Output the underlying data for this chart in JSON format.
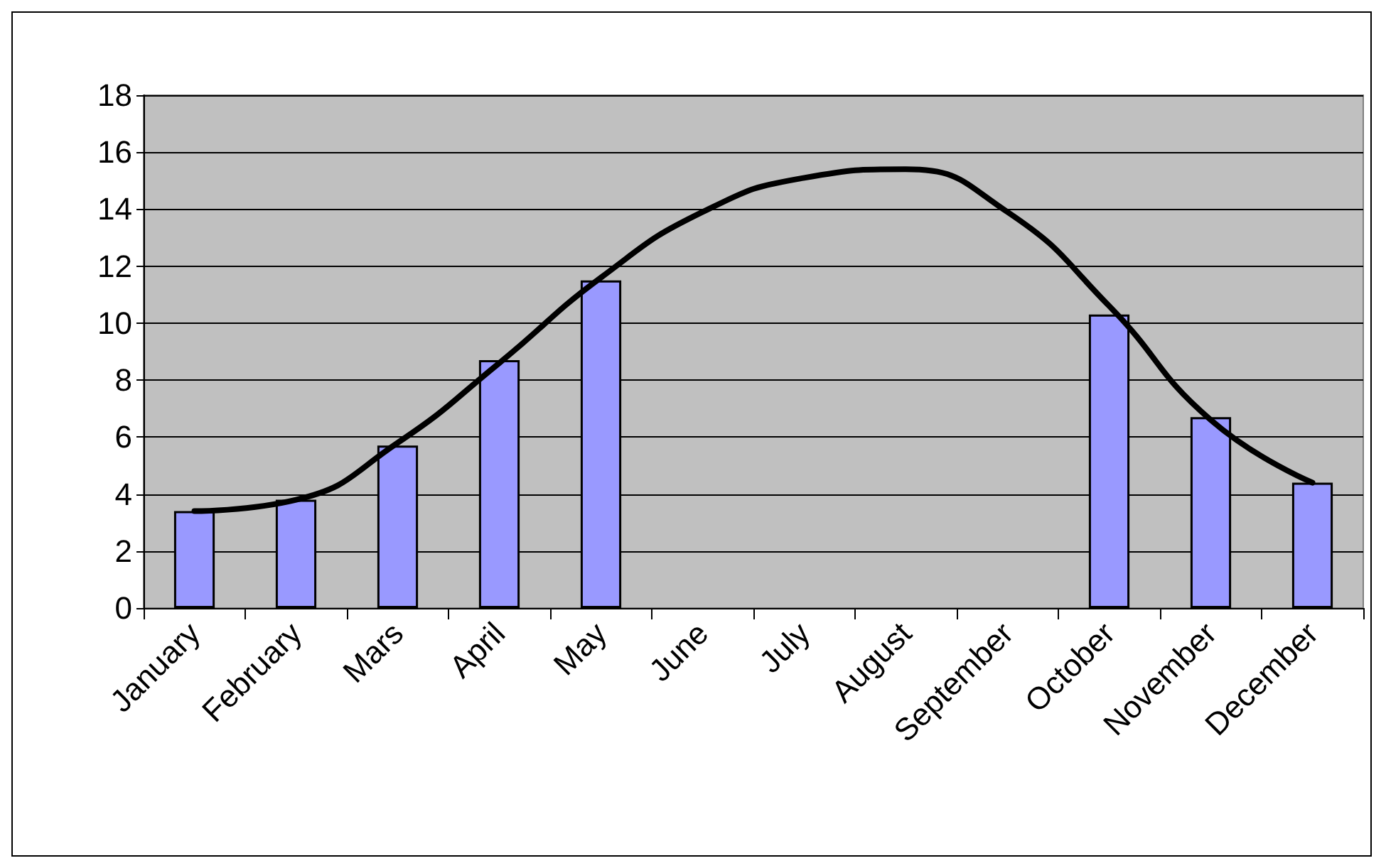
{
  "chart_data": {
    "type": "bar",
    "categories": [
      "January",
      "February",
      "Mars",
      "April",
      "May",
      "June",
      "July",
      "August",
      "September",
      "October",
      "November",
      "December"
    ],
    "series": [
      {
        "color": "#9999ff",
        "values": [
          3.4,
          3.8,
          5.7,
          8.7,
          11.5,
          null,
          null,
          null,
          null,
          10.3,
          6.7,
          4.4
        ]
      },
      {
        "type": "line",
        "color": "#000000",
        "values": [
          3.4,
          3.8,
          5.8,
          8.6,
          11.6,
          13.9,
          15.1,
          15.4,
          13.9,
          10.6,
          6.6,
          4.4
        ]
      }
    ],
    "ylim": [
      0,
      18
    ],
    "yticks": [
      0,
      2,
      4,
      6,
      8,
      10,
      12,
      14,
      16,
      18
    ],
    "grid": "y",
    "marker": "none",
    "line_style": "solid"
  }
}
